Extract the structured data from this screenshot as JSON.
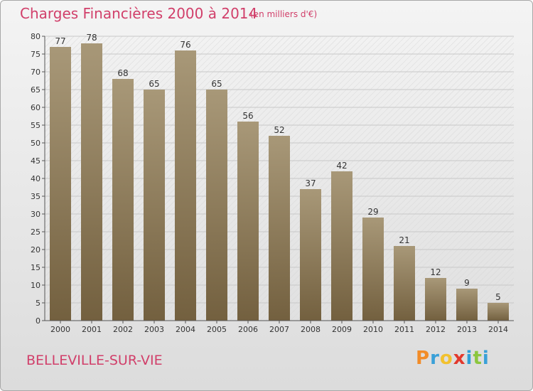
{
  "header": {
    "title": "Charges Financières 2000 à 2014",
    "subtitle": "(en milliers d'€)"
  },
  "footer": {
    "commune": "BELLEVILLE-SUR-VIE",
    "brand": "Proxiti",
    "brand_colors": [
      "#f28c28",
      "#3aa0d8",
      "#f2c12e",
      "#e2392d",
      "#2e9fd6",
      "#8cc63f",
      "#3aa0d8"
    ]
  },
  "colors": {
    "bar_top": "#a89878",
    "bar_bottom": "#73603f",
    "text_accent": "#d13f6a"
  },
  "chart_data": {
    "type": "bar",
    "categories": [
      "2000",
      "2001",
      "2002",
      "2003",
      "2004",
      "2005",
      "2006",
      "2007",
      "2008",
      "2009",
      "2010",
      "2011",
      "2012",
      "2013",
      "2014"
    ],
    "values": [
      77,
      78,
      68,
      65,
      76,
      65,
      56,
      52,
      37,
      42,
      29,
      21,
      12,
      9,
      5
    ],
    "title": "Charges Financières 2000 à 2014",
    "subtitle": "(en milliers d'€)",
    "ylim": [
      0,
      80
    ],
    "yticks": [
      0,
      5,
      10,
      15,
      20,
      25,
      30,
      35,
      40,
      45,
      50,
      55,
      60,
      65,
      70,
      75,
      80
    ],
    "grid": true
  }
}
